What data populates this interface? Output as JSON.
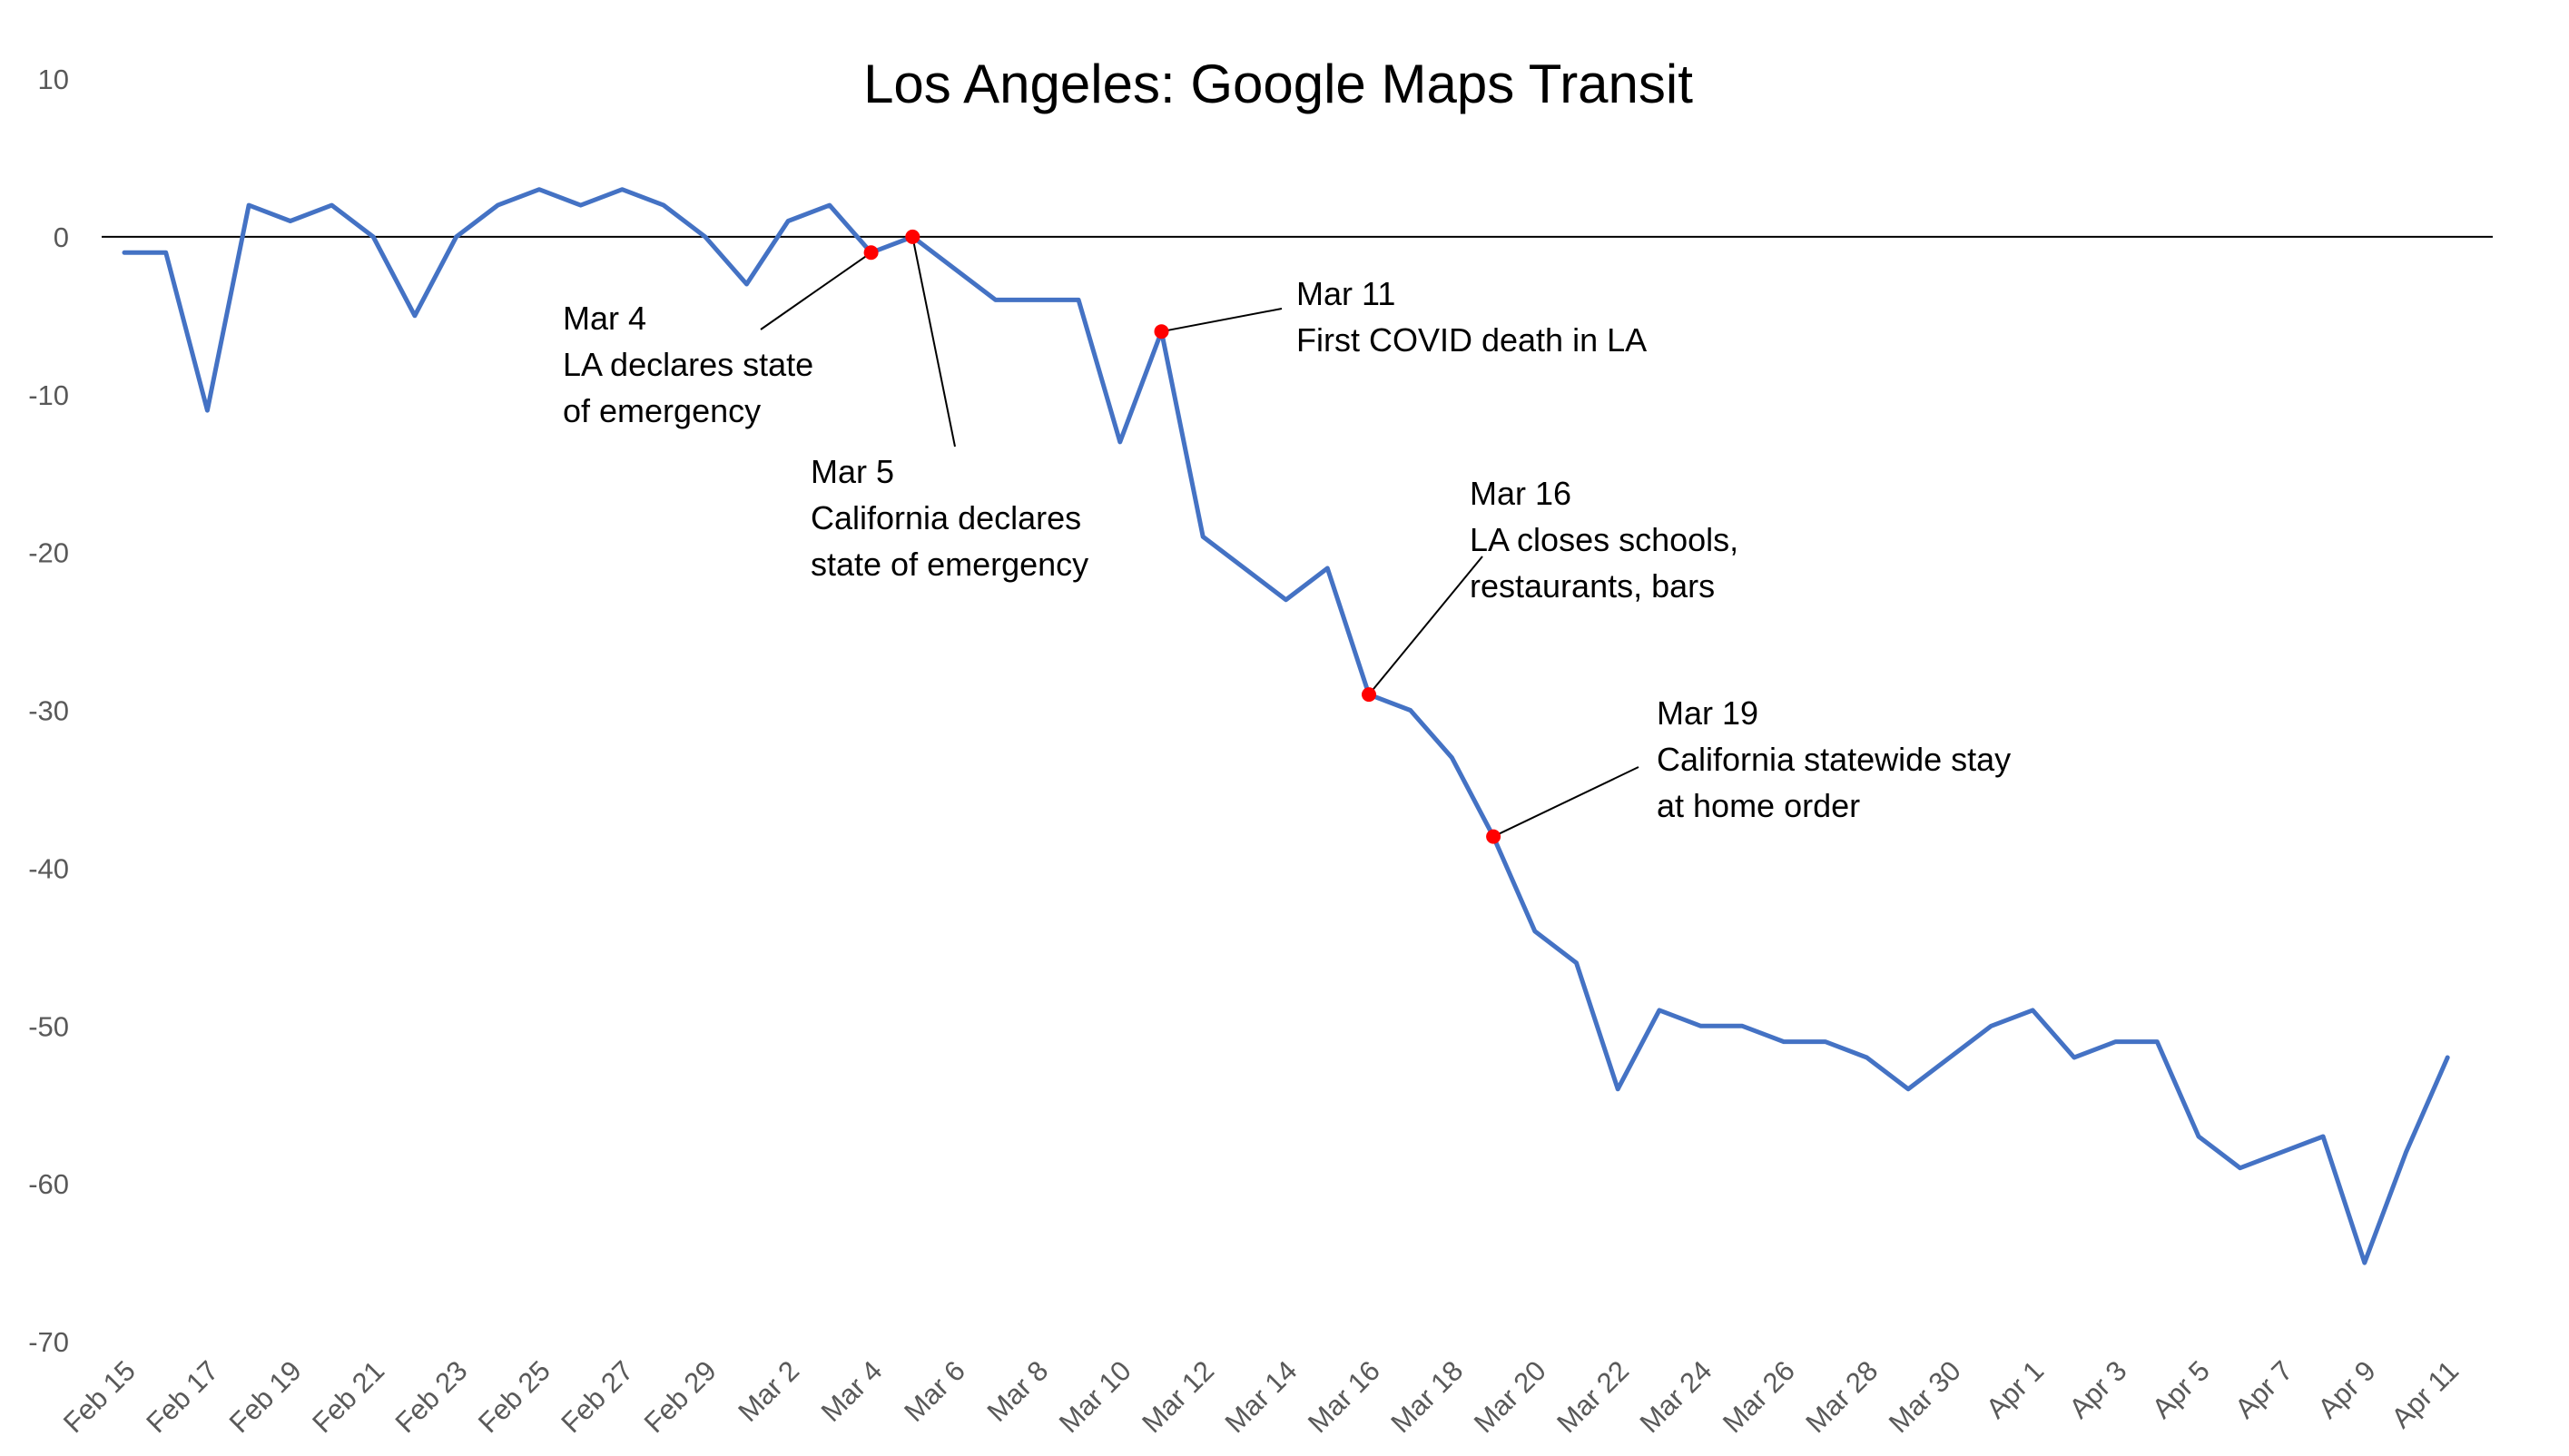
{
  "chart_data": {
    "type": "line",
    "title": "Los Angeles: Google Maps Transit",
    "xlabel": "",
    "ylabel": "",
    "ylim": [
      -70,
      10
    ],
    "yticks": [
      10,
      0,
      -10,
      -20,
      -30,
      -40,
      -50,
      -60,
      -70
    ],
    "ytick_labels": [
      "10",
      "0",
      "-10",
      "-20",
      "-30",
      "-40",
      "-50",
      "-60",
      "-70"
    ],
    "grid": false,
    "legend": "none",
    "x": [
      "Feb 15",
      "Feb 16",
      "Feb 17",
      "Feb 18",
      "Feb 19",
      "Feb 20",
      "Feb 21",
      "Feb 22",
      "Feb 23",
      "Feb 24",
      "Feb 25",
      "Feb 26",
      "Feb 27",
      "Feb 28",
      "Feb 29",
      "Mar 1",
      "Mar 2",
      "Mar 3",
      "Mar 4",
      "Mar 5",
      "Mar 6",
      "Mar 7",
      "Mar 8",
      "Mar 9",
      "Mar 10",
      "Mar 11",
      "Mar 12",
      "Mar 13",
      "Mar 14",
      "Mar 15",
      "Mar 16",
      "Mar 17",
      "Mar 18",
      "Mar 19",
      "Mar 20",
      "Mar 21",
      "Mar 22",
      "Mar 23",
      "Mar 24",
      "Mar 25",
      "Mar 26",
      "Mar 27",
      "Mar 28",
      "Mar 29",
      "Mar 30",
      "Mar 31",
      "Apr 1",
      "Apr 2",
      "Apr 3",
      "Apr 4",
      "Apr 5",
      "Apr 6",
      "Apr 7",
      "Apr 8",
      "Apr 9",
      "Apr 10",
      "Apr 11"
    ],
    "xtick_labels": [
      "Feb 15",
      "Feb 17",
      "Feb 19",
      "Feb 21",
      "Feb 23",
      "Feb 25",
      "Feb 27",
      "Feb 29",
      "Mar 2",
      "Mar 4",
      "Mar 6",
      "Mar 8",
      "Mar 10",
      "Mar 12",
      "Mar 14",
      "Mar 16",
      "Mar 18",
      "Mar 20",
      "Mar 22",
      "Mar 24",
      "Mar 26",
      "Mar 28",
      "Mar 30",
      "Apr 1",
      "Apr 3",
      "Apr 5",
      "Apr 7",
      "Apr 9",
      "Apr 11"
    ],
    "series": [
      {
        "color": "#4472C4",
        "values": [
          -1,
          -1,
          -11,
          2,
          1,
          2,
          0,
          -5,
          0,
          2,
          3,
          2,
          3,
          2,
          0,
          -3,
          1,
          2,
          -1,
          0,
          -2,
          -4,
          -4,
          -4,
          -13,
          -6,
          -19,
          -21,
          -23,
          -21,
          -29,
          -30,
          -33,
          -38,
          -44,
          -46,
          -54,
          -49,
          -50,
          -50,
          -51,
          -51,
          -52,
          -54,
          -52,
          -50,
          -49,
          -52,
          -51,
          -51,
          -57,
          -59,
          -58,
          -57,
          -65,
          -58,
          -52
        ]
      }
    ],
    "marker_color": "#FF0000",
    "annotations": [
      {
        "x": "Mar 4",
        "lines": [
          "Mar 4",
          "LA declares state",
          "of emergency"
        ]
      },
      {
        "x": "Mar 5",
        "lines": [
          "Mar 5",
          "California declares",
          "state of emergency"
        ]
      },
      {
        "x": "Mar 11",
        "lines": [
          "Mar 11",
          "First COVID death in LA"
        ]
      },
      {
        "x": "Mar 16",
        "lines": [
          "Mar 16",
          "LA closes schools,",
          "restaurants, bars"
        ]
      },
      {
        "x": "Mar 19",
        "lines": [
          "Mar 19",
          "California statewide stay",
          "at home order"
        ]
      }
    ]
  }
}
